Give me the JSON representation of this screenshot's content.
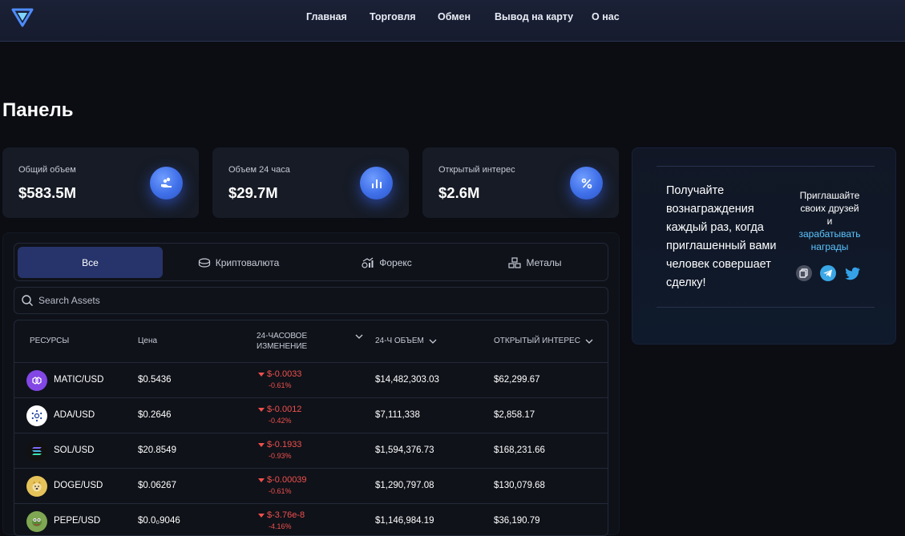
{
  "nav": {
    "items": [
      "Главная",
      "Торговля",
      "Обмен",
      "Вывод на карту",
      "О нас"
    ]
  },
  "page_title": "Панель",
  "stats": [
    {
      "label": "Общий объем",
      "value": "$583.5M",
      "icon": "coins-hand-icon"
    },
    {
      "label": "Объем 24 часа",
      "value": "$29.7M",
      "icon": "bar-chart-icon"
    },
    {
      "label": "Открытый интерес",
      "value": "$2.6M",
      "icon": "percent-icon"
    }
  ],
  "referral": {
    "text": "Получайте вознаграждения каждый раз, когда приглашенный вами человек совершает сделку!",
    "invite_line1": "Приглашайте своих друзей",
    "invite_line2": "и",
    "invite_link": "зарабатывать награды",
    "icons": [
      "copy-icon",
      "telegram-icon",
      "twitter-icon"
    ]
  },
  "tabs": [
    {
      "label": "Все",
      "active": true,
      "icon": ""
    },
    {
      "label": "Криптовалюта",
      "active": false,
      "icon": "coins-icon"
    },
    {
      "label": "Форекс",
      "active": false,
      "icon": "forex-icon"
    },
    {
      "label": "Металы",
      "active": false,
      "icon": "metals-icon"
    }
  ],
  "search": {
    "placeholder": "Search Assets",
    "value": ""
  },
  "table": {
    "headers": {
      "asset": "РЕСУРСЫ",
      "price": "Цена",
      "change": "24-ЧАСОВОЕ ИЗМЕНЕНИЕ",
      "change_l1": "24-ЧАСОВОЕ",
      "change_l2": "ИЗМЕНЕНИЕ",
      "volume": "24-Ч ОБЪЕМ",
      "oi": "ОТКРЫТЫЙ ИНТЕРЕС"
    },
    "rows": [
      {
        "asset": "MATIC/USD",
        "price": "$0.5436",
        "change": "$-0.0033",
        "change_pct": "-0.61%",
        "volume": "$14,482,303.03",
        "oi": "$62,299.67",
        "icon": "matic-icon",
        "color": "#8247e5"
      },
      {
        "asset": "ADA/USD",
        "price": "$0.2646",
        "change": "$-0.0012",
        "change_pct": "-0.42%",
        "volume": "$7,111,338",
        "oi": "$2,858.17",
        "icon": "cardano-icon",
        "color": "#ffffff"
      },
      {
        "asset": "SOL/USD",
        "price": "$20.8549",
        "change": "$-0.1933",
        "change_pct": "-0.93%",
        "volume": "$1,594,376.73",
        "oi": "$168,231.66",
        "icon": "solana-icon",
        "color": "#111111"
      },
      {
        "asset": "DOGE/USD",
        "price": "$0.06267",
        "change": "$-0.00039",
        "change_pct": "-0.61%",
        "volume": "$1,290,797.08",
        "oi": "$130,079.68",
        "icon": "doge-icon",
        "color": "#e6c35a"
      },
      {
        "asset": "PEPE/USD",
        "price": "$0.0₀9046",
        "change": "$-3.76e-8",
        "change_pct": "-4.16%",
        "volume": "$1,146,984.19",
        "oi": "$36,190.79",
        "icon": "pepe-icon",
        "color": "#7fa652"
      }
    ]
  },
  "colors": {
    "accent": "#3f6fe8",
    "active_tab": "#27346b",
    "negative": "#f0504d",
    "link": "#5cc5ff"
  }
}
